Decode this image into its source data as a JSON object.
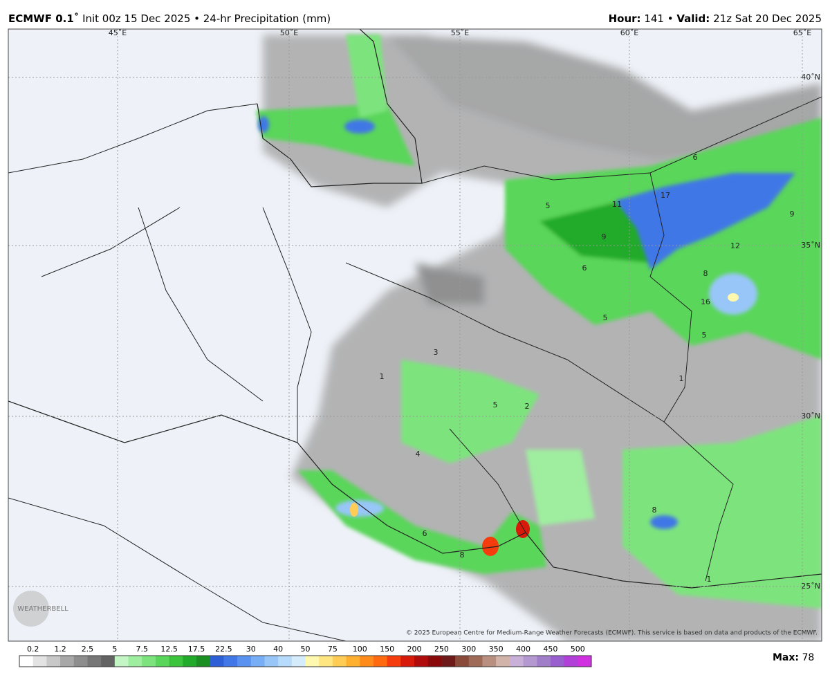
{
  "header": {
    "model": "ECMWF 0.1˚",
    "init": "Init 00z 15 Dec 2025 • 24-hr Precipitation (mm)",
    "hour_label": "Hour:",
    "hour": "141 •",
    "valid_label": "Valid:",
    "valid": "21z Sat 20 Dec 2025"
  },
  "map": {
    "lon_labels": [
      "45˚E",
      "50˚E",
      "55˚E",
      "60˚E",
      "65˚E"
    ],
    "lat_labels": [
      "40˚N",
      "35˚N",
      "30˚N",
      "25˚N"
    ],
    "contour_labels": [
      6,
      17,
      11,
      5,
      9,
      9,
      12,
      6,
      8,
      16,
      5,
      5,
      3,
      1,
      1,
      5,
      2,
      4,
      6,
      8,
      8,
      1
    ],
    "watermark": "WEATHERBELL",
    "copyright": "© 2025 European Centre for Medium-Range Weather Forecasts (ECMWF). This service is based on data and products of the ECMWF."
  },
  "legend": {
    "levels": [
      0.2,
      1.2,
      2.5,
      5,
      7.5,
      12.5,
      17.5,
      22.5,
      30,
      40,
      50,
      75,
      100,
      150,
      200,
      250,
      300,
      350,
      400,
      450,
      500
    ],
    "colors": [
      "#ffffff",
      "#e3e3e3",
      "#c8c8c8",
      "#a8a8a8",
      "#8e8e8e",
      "#777777",
      "#636363",
      "#c4f5c4",
      "#9fee9f",
      "#7de47d",
      "#5ad65a",
      "#3cc43c",
      "#22aa2a",
      "#1b8f22",
      "#2f5fd6",
      "#4177e6",
      "#5a92ef",
      "#78aef5",
      "#98c6f8",
      "#b7dbfb",
      "#d5ecfd",
      "#fff9b0",
      "#ffe680",
      "#ffcc55",
      "#ffb030",
      "#ff8c1a",
      "#ff6a10",
      "#f43c0c",
      "#d81a0a",
      "#b00c0c",
      "#8a0a0a",
      "#6e1a1a",
      "#8a4a3a",
      "#a06a58",
      "#b98f80",
      "#d2b3aa",
      "#c9b0d8",
      "#b498d0",
      "#a07ec8",
      "#9a5fcf",
      "#b040d8",
      "#d030e0"
    ],
    "max_label": "Max:",
    "max": 78
  }
}
